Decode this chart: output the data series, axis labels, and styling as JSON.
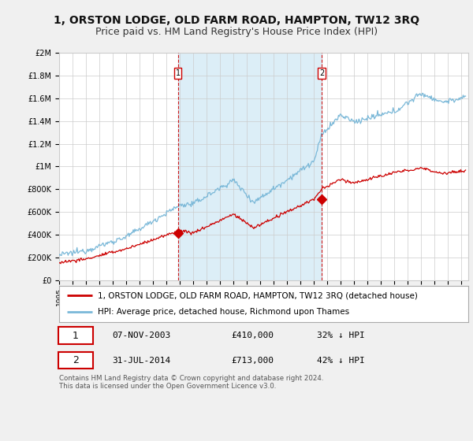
{
  "title": "1, ORSTON LODGE, OLD FARM ROAD, HAMPTON, TW12 3RQ",
  "subtitle": "Price paid vs. HM Land Registry's House Price Index (HPI)",
  "legend_line1": "1, ORSTON LODGE, OLD FARM ROAD, HAMPTON, TW12 3RQ (detached house)",
  "legend_line2": "HPI: Average price, detached house, Richmond upon Thames",
  "sale1_label": "1",
  "sale1_date": "07-NOV-2003",
  "sale1_price": "£410,000",
  "sale1_hpi": "32% ↓ HPI",
  "sale2_label": "2",
  "sale2_date": "31-JUL-2014",
  "sale2_price": "£713,000",
  "sale2_hpi": "42% ↓ HPI",
  "footer": "Contains HM Land Registry data © Crown copyright and database right 2024.\nThis data is licensed under the Open Government Licence v3.0.",
  "hpi_color": "#7ab8d8",
  "sale_color": "#cc0000",
  "vline_color": "#cc0000",
  "shade_color": "#dceef7",
  "background_color": "#f0f0f0",
  "plot_bg_color": "#ffffff",
  "ylim": [
    0,
    2000000
  ],
  "xlim_start": 1995.0,
  "xlim_end": 2025.5,
  "sale1_x": 2003.85,
  "sale1_y": 410000,
  "sale2_x": 2014.58,
  "sale2_y": 713000,
  "title_fontsize": 10,
  "subtitle_fontsize": 9
}
